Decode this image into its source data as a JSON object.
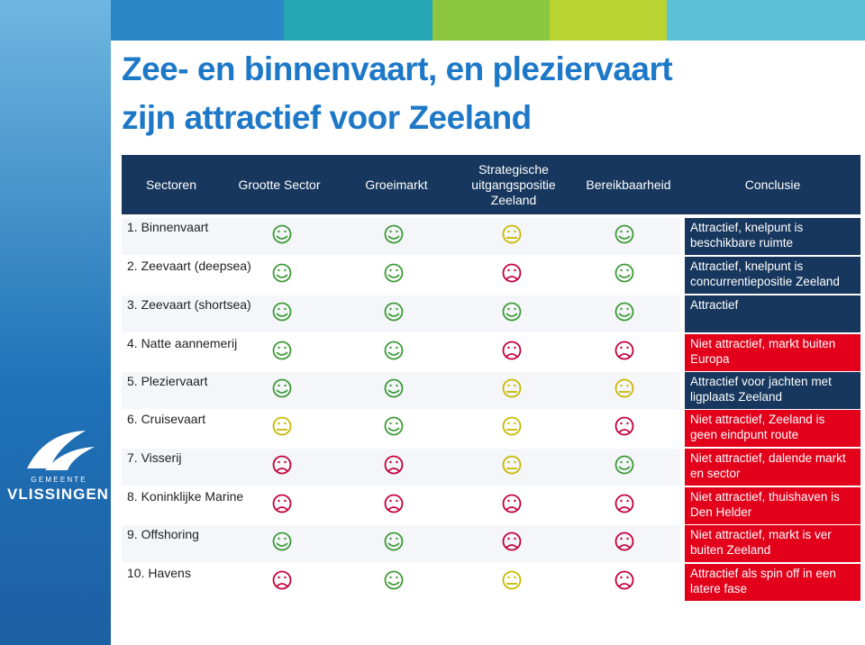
{
  "header": {
    "title_line1": "Zee- en binnenvaart, en plezierva​art",
    "title_line2": "zijn attractief voor Zeeland"
  },
  "logo": {
    "top": "G E M E E N T E",
    "name": "VLISSINGEN"
  },
  "table": {
    "columns": [
      "Sectoren",
      "Grootte Sector",
      "Groeimarkt",
      "Strategische uitgangspositie Zeeland",
      "Bereikbaarheid",
      "Conclusie"
    ],
    "rows": [
      {
        "sector": "1. Binnenvaart",
        "scores": [
          "happy",
          "happy",
          "neutral",
          "happy"
        ],
        "conclusion": "Attractief, knelpunt is beschikbare ruimte",
        "color": "#17375e"
      },
      {
        "sector": "2. Zeevaart (deepsea)",
        "scores": [
          "happy",
          "happy",
          "sad",
          "happy"
        ],
        "conclusion": "Attractief, knelpunt is concurrentiepositie Zeeland",
        "color": "#17375e"
      },
      {
        "sector": "3. Zeevaart (shortsea)",
        "scores": [
          "happy",
          "happy",
          "happy",
          "happy"
        ],
        "conclusion": "Attractief",
        "color": "#17375e"
      },
      {
        "sector": "4. Natte aannemerij",
        "scores": [
          "happy",
          "happy",
          "sad",
          "sad"
        ],
        "conclusion": "Niet attractief, markt buiten Europa",
        "color": "#e2001a"
      },
      {
        "sector": "5. Pleziervaart",
        "scores": [
          "happy",
          "happy",
          "neutral",
          "neutral"
        ],
        "conclusion": "Attractief voor jachten met ligplaats Zeeland",
        "color": "#17375e"
      },
      {
        "sector": "6. Cruisevaart",
        "scores": [
          "neutral",
          "happy",
          "neutral",
          "sad"
        ],
        "conclusion": "Niet attractief, Zeeland is geen eindpunt route",
        "color": "#e2001a"
      },
      {
        "sector": "7. Visserij",
        "scores": [
          "sad",
          "sad",
          "neutral",
          "happy"
        ],
        "conclusion": "Niet attractief, dalende markt en sector",
        "color": "#e2001a"
      },
      {
        "sector": "8. Koninklijke Marine",
        "scores": [
          "sad",
          "sad",
          "sad",
          "sad"
        ],
        "conclusion": "Niet attractief, thuishaven is Den Helder",
        "color": "#e2001a"
      },
      {
        "sector": "9. Offshoring",
        "scores": [
          "happy",
          "happy",
          "sad",
          "sad"
        ],
        "conclusion": "Niet attractief, markt is ver buiten Zeeland",
        "color": "#e2001a"
      },
      {
        "sector": "10. Havens",
        "scores": [
          "sad",
          "happy",
          "neutral",
          "sad"
        ],
        "conclusion": "Attractief als spin off in een latere fase",
        "color": "#e2001a"
      }
    ]
  }
}
